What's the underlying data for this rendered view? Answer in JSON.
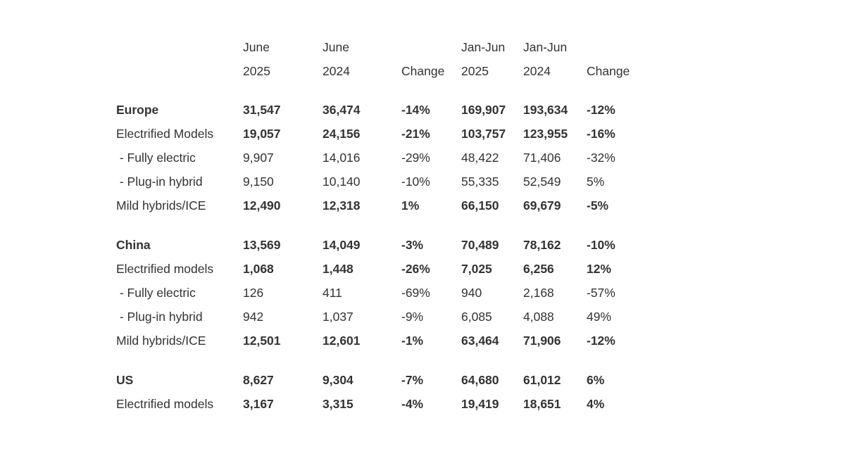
{
  "colors": {
    "background": "#ffffff",
    "text": "#333333"
  },
  "chart_data": {
    "type": "table",
    "title": "",
    "header": {
      "line1": [
        "",
        "June",
        "June",
        "",
        "Jan-Jun",
        "Jan-Jun",
        ""
      ],
      "line2": [
        "",
        "2025",
        "2024",
        "Change",
        "2025",
        "2024",
        "Change"
      ]
    },
    "sections": [
      {
        "name": "Europe",
        "rows": [
          {
            "label": "Europe",
            "emphasis": "section-header",
            "values": [
              "31,547",
              "36,474",
              "-14%",
              "169,907",
              "193,634",
              "-12%"
            ]
          },
          {
            "label": "Electrified Models",
            "emphasis": "bold-values",
            "values": [
              "19,057",
              "24,156",
              "-21%",
              "103,757",
              "123,955",
              "-16%"
            ]
          },
          {
            "label": " - Fully electric",
            "emphasis": "plain",
            "values": [
              "9,907",
              "14,016",
              "-29%",
              "48,422",
              "71,406",
              "-32%"
            ]
          },
          {
            "label": " - Plug-in hybrid",
            "emphasis": "plain",
            "values": [
              "9,150",
              "10,140",
              "-10%",
              "55,335",
              "52,549",
              "5%"
            ]
          },
          {
            "label": "Mild hybrids/ICE",
            "emphasis": "bold-values",
            "values": [
              "12,490",
              "12,318",
              "1%",
              "66,150",
              "69,679",
              "-5%"
            ]
          }
        ]
      },
      {
        "name": "China",
        "rows": [
          {
            "label": "China",
            "emphasis": "section-header",
            "values": [
              "13,569",
              "14,049",
              "-3%",
              "70,489",
              "78,162",
              "-10%"
            ]
          },
          {
            "label": "Electrified models",
            "emphasis": "bold-values",
            "values": [
              "1,068",
              "1,448",
              "-26%",
              "7,025",
              "6,256",
              "12%"
            ]
          },
          {
            "label": " - Fully electric",
            "emphasis": "plain",
            "values": [
              "126",
              "411",
              "-69%",
              "940",
              "2,168",
              "-57%"
            ]
          },
          {
            "label": " - Plug-in hybrid",
            "emphasis": "plain",
            "values": [
              "942",
              "1,037",
              "-9%",
              "6,085",
              "4,088",
              "49%"
            ]
          },
          {
            "label": "Mild hybrids/ICE",
            "emphasis": "bold-values",
            "values": [
              "12,501",
              "12,601",
              "-1%",
              "63,464",
              "71,906",
              "-12%"
            ]
          }
        ]
      },
      {
        "name": "US",
        "rows": [
          {
            "label": "US",
            "emphasis": "section-header",
            "values": [
              "8,627",
              "9,304",
              "-7%",
              "64,680",
              "61,012",
              "6%"
            ]
          },
          {
            "label": "Electrified models",
            "emphasis": "bold-values",
            "values": [
              "3,167",
              "3,315",
              "-4%",
              "19,419",
              "18,651",
              "4%"
            ]
          }
        ]
      }
    ]
  }
}
